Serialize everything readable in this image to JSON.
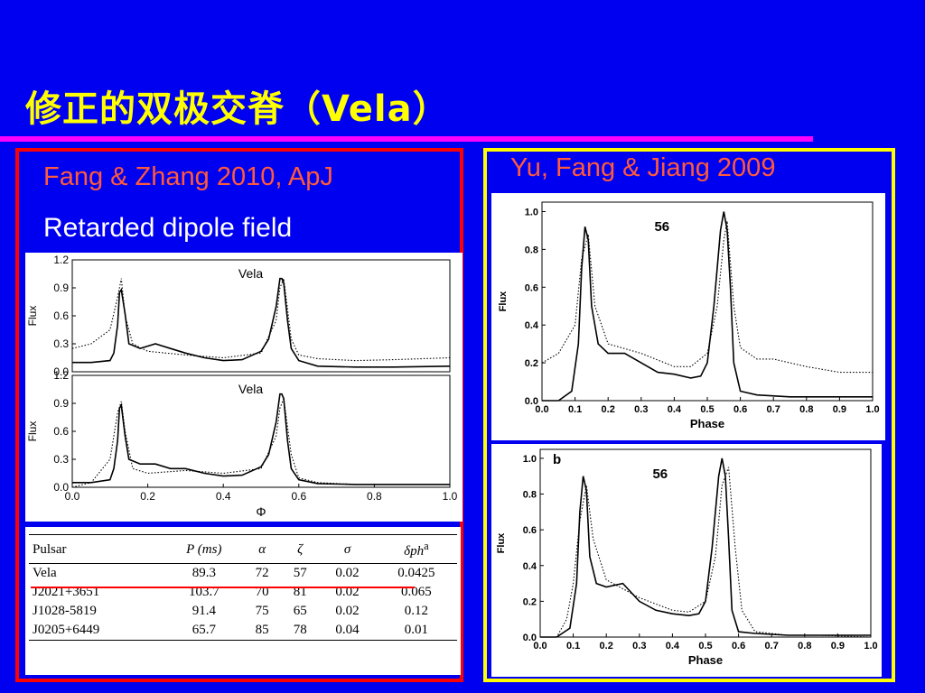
{
  "slide": {
    "title": "修正的双极交脊（Vela）",
    "left_citation": "Fang & Zhang 2010, ApJ",
    "left_subtitle": "Retarded dipole field",
    "right_citation": "Yu, Fang & Jiang 2009"
  },
  "colors": {
    "background": "#0000f0",
    "title": "#ffff00",
    "title_rule": "#ff00ff",
    "left_frame": "#ff0000",
    "right_frame": "#ffff00",
    "citation": "#ff5a3c",
    "subtitle": "#ffffff",
    "vela_underline": "#ff0000"
  },
  "table": {
    "headers": [
      "Pulsar",
      "P (ms)",
      "α",
      "ζ",
      "σ",
      "δph"
    ],
    "header_superscript": "a",
    "rows": [
      [
        "Vela",
        "89.3",
        "72",
        "57",
        "0.02",
        "0.0425"
      ],
      [
        "J2021+3651",
        "103.7",
        "70",
        "81",
        "0.02",
        "0.065"
      ],
      [
        "J1028-5819",
        "91.4",
        "75",
        "65",
        "0.02",
        "0.12"
      ],
      [
        "J0205+6449",
        "65.7",
        "85",
        "78",
        "0.04",
        "0.01"
      ]
    ]
  },
  "chart_data": [
    {
      "type": "line",
      "panel": "left-top",
      "title": "Vela",
      "xlabel": "",
      "ylabel": "Flux",
      "xlim": [
        0.0,
        1.0
      ],
      "ylim": [
        0.0,
        1.2
      ],
      "yticks": [
        "0.0",
        "0.3",
        "0.6",
        "0.9",
        "1.2"
      ],
      "series": [
        {
          "style": "solid",
          "x": [
            0.0,
            0.05,
            0.1,
            0.11,
            0.12,
            0.125,
            0.13,
            0.14,
            0.15,
            0.18,
            0.22,
            0.26,
            0.3,
            0.35,
            0.4,
            0.45,
            0.5,
            0.52,
            0.54,
            0.55,
            0.555,
            0.56,
            0.57,
            0.58,
            0.6,
            0.65,
            0.75,
            0.85,
            1.0
          ],
          "y": [
            0.1,
            0.1,
            0.12,
            0.2,
            0.5,
            0.85,
            0.88,
            0.62,
            0.3,
            0.25,
            0.3,
            0.25,
            0.2,
            0.15,
            0.12,
            0.13,
            0.22,
            0.35,
            0.7,
            1.0,
            1.0,
            0.95,
            0.55,
            0.25,
            0.12,
            0.06,
            0.05,
            0.05,
            0.06
          ]
        },
        {
          "style": "dotted",
          "x": [
            0.0,
            0.05,
            0.1,
            0.12,
            0.13,
            0.14,
            0.16,
            0.2,
            0.3,
            0.4,
            0.5,
            0.54,
            0.55,
            0.56,
            0.58,
            0.6,
            0.65,
            0.75,
            0.85,
            1.0
          ],
          "y": [
            0.25,
            0.3,
            0.45,
            0.8,
            1.0,
            0.6,
            0.3,
            0.22,
            0.18,
            0.15,
            0.2,
            0.55,
            0.9,
            1.0,
            0.35,
            0.18,
            0.14,
            0.12,
            0.13,
            0.15
          ]
        }
      ]
    },
    {
      "type": "line",
      "panel": "left-bottom",
      "title": "Vela",
      "xlabel": "Φ",
      "ylabel": "Flux",
      "xlim": [
        0.0,
        1.0
      ],
      "ylim": [
        0.0,
        1.2
      ],
      "xticks": [
        "0.0",
        "0.2",
        "0.4",
        "0.6",
        "0.8",
        "1.0"
      ],
      "yticks": [
        "0.0",
        "0.3",
        "0.6",
        "0.9",
        "1.2"
      ],
      "series": [
        {
          "style": "solid",
          "x": [
            0.0,
            0.05,
            0.1,
            0.11,
            0.12,
            0.125,
            0.13,
            0.14,
            0.15,
            0.18,
            0.22,
            0.26,
            0.3,
            0.35,
            0.4,
            0.45,
            0.5,
            0.52,
            0.54,
            0.55,
            0.555,
            0.56,
            0.57,
            0.58,
            0.6,
            0.65,
            0.75,
            0.85,
            1.0
          ],
          "y": [
            0.05,
            0.05,
            0.08,
            0.2,
            0.5,
            0.85,
            0.88,
            0.55,
            0.3,
            0.25,
            0.25,
            0.2,
            0.2,
            0.15,
            0.12,
            0.13,
            0.22,
            0.35,
            0.7,
            1.0,
            1.0,
            0.95,
            0.5,
            0.2,
            0.08,
            0.04,
            0.03,
            0.03,
            0.03
          ]
        },
        {
          "style": "dotted",
          "x": [
            0.0,
            0.05,
            0.1,
            0.12,
            0.13,
            0.14,
            0.16,
            0.2,
            0.3,
            0.4,
            0.5,
            0.54,
            0.55,
            0.56,
            0.58,
            0.6,
            0.65,
            0.75,
            0.85,
            1.0
          ],
          "y": [
            0.0,
            0.05,
            0.3,
            0.8,
            0.92,
            0.6,
            0.2,
            0.15,
            0.18,
            0.15,
            0.2,
            0.55,
            0.85,
            0.95,
            0.35,
            0.1,
            0.05,
            0.03,
            0.03,
            0.03
          ]
        }
      ]
    },
    {
      "type": "line",
      "panel": "right-top",
      "annotation": "56",
      "xlabel": "Phase",
      "ylabel": "Flux",
      "xlim": [
        0.0,
        1.0
      ],
      "ylim": [
        0.0,
        1.05
      ],
      "xticks": [
        "0.0",
        "0.1",
        "0.2",
        "0.3",
        "0.4",
        "0.5",
        "0.6",
        "0.7",
        "0.8",
        "0.9",
        "1.0"
      ],
      "yticks": [
        "0.0",
        "0.2",
        "0.4",
        "0.6",
        "0.8",
        "1.0"
      ],
      "series": [
        {
          "style": "solid",
          "x": [
            0.0,
            0.05,
            0.09,
            0.11,
            0.12,
            0.13,
            0.14,
            0.15,
            0.17,
            0.2,
            0.25,
            0.3,
            0.35,
            0.4,
            0.45,
            0.48,
            0.5,
            0.52,
            0.54,
            0.55,
            0.56,
            0.57,
            0.58,
            0.6,
            0.65,
            0.75,
            0.85,
            1.0
          ],
          "y": [
            0.0,
            0.0,
            0.05,
            0.3,
            0.7,
            0.92,
            0.85,
            0.5,
            0.3,
            0.25,
            0.25,
            0.2,
            0.15,
            0.14,
            0.12,
            0.13,
            0.2,
            0.5,
            0.9,
            1.0,
            0.9,
            0.6,
            0.2,
            0.05,
            0.03,
            0.02,
            0.02,
            0.02
          ]
        },
        {
          "style": "dotted",
          "x": [
            0.0,
            0.05,
            0.1,
            0.12,
            0.14,
            0.16,
            0.2,
            0.3,
            0.4,
            0.45,
            0.5,
            0.53,
            0.55,
            0.56,
            0.58,
            0.6,
            0.65,
            0.7,
            0.8,
            0.9,
            1.0
          ],
          "y": [
            0.2,
            0.25,
            0.4,
            0.75,
            0.88,
            0.5,
            0.3,
            0.25,
            0.18,
            0.18,
            0.25,
            0.5,
            0.85,
            0.95,
            0.5,
            0.28,
            0.22,
            0.22,
            0.18,
            0.15,
            0.15
          ]
        }
      ]
    },
    {
      "type": "line",
      "panel": "right-bottom",
      "panel_label": "b",
      "annotation": "56",
      "xlabel": "Phase",
      "ylabel": "Flux",
      "xlim": [
        0.0,
        1.0
      ],
      "ylim": [
        0.0,
        1.05
      ],
      "xticks": [
        "0.0",
        "0.1",
        "0.2",
        "0.3",
        "0.4",
        "0.5",
        "0.6",
        "0.7",
        "0.8",
        "0.9",
        "1.0"
      ],
      "yticks": [
        "0.0",
        "0.2",
        "0.4",
        "0.6",
        "0.8",
        "1.0"
      ],
      "series": [
        {
          "style": "solid",
          "x": [
            0.0,
            0.05,
            0.09,
            0.11,
            0.12,
            0.13,
            0.14,
            0.15,
            0.17,
            0.2,
            0.25,
            0.3,
            0.35,
            0.4,
            0.45,
            0.48,
            0.5,
            0.52,
            0.54,
            0.55,
            0.56,
            0.57,
            0.58,
            0.6,
            0.65,
            0.75,
            0.85,
            1.0
          ],
          "y": [
            0.0,
            0.0,
            0.05,
            0.3,
            0.7,
            0.9,
            0.82,
            0.45,
            0.3,
            0.28,
            0.3,
            0.2,
            0.15,
            0.13,
            0.12,
            0.13,
            0.2,
            0.5,
            0.9,
            1.0,
            0.9,
            0.55,
            0.15,
            0.03,
            0.02,
            0.01,
            0.01,
            0.01
          ]
        },
        {
          "style": "dotted",
          "x": [
            0.0,
            0.05,
            0.08,
            0.1,
            0.12,
            0.14,
            0.16,
            0.2,
            0.3,
            0.4,
            0.45,
            0.5,
            0.53,
            0.55,
            0.57,
            0.59,
            0.61,
            0.65,
            0.75,
            0.85,
            1.0
          ],
          "y": [
            0.0,
            0.0,
            0.1,
            0.3,
            0.65,
            0.85,
            0.55,
            0.32,
            0.22,
            0.15,
            0.14,
            0.2,
            0.45,
            0.85,
            0.95,
            0.5,
            0.15,
            0.03,
            0.01,
            0.01,
            0.0
          ]
        }
      ]
    }
  ]
}
